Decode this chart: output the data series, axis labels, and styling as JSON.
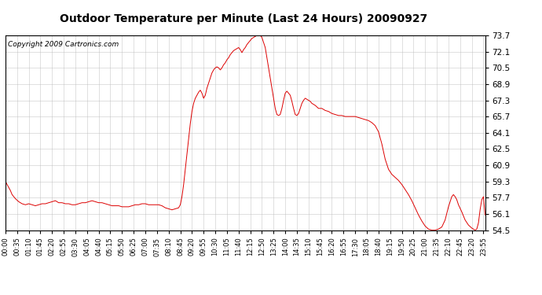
{
  "title": "Outdoor Temperature per Minute (Last 24 Hours) 20090927",
  "copyright": "Copyright 2009 Cartronics.com",
  "y_ticks": [
    54.5,
    56.1,
    57.7,
    59.3,
    60.9,
    62.5,
    64.1,
    65.7,
    67.3,
    68.9,
    70.5,
    72.1,
    73.7
  ],
  "y_min": 54.5,
  "y_max": 73.7,
  "line_color": "#dd0000",
  "bg_color": "#ffffff",
  "grid_color": "#bbbbbb",
  "x_labels": [
    "00:00",
    "00:35",
    "01:10",
    "01:45",
    "02:20",
    "02:55",
    "03:30",
    "04:05",
    "04:40",
    "05:15",
    "05:50",
    "06:25",
    "07:00",
    "07:35",
    "08:10",
    "08:45",
    "09:20",
    "09:55",
    "10:30",
    "11:05",
    "11:40",
    "12:15",
    "12:50",
    "13:25",
    "14:00",
    "14:35",
    "15:10",
    "15:45",
    "16:20",
    "16:55",
    "17:30",
    "18:05",
    "18:40",
    "19:15",
    "19:50",
    "20:25",
    "21:00",
    "21:35",
    "22:10",
    "22:45",
    "23:20",
    "23:55"
  ],
  "curve_data": [
    [
      0,
      59.3
    ],
    [
      5,
      59.0
    ],
    [
      10,
      58.7
    ],
    [
      15,
      58.4
    ],
    [
      20,
      58.0
    ],
    [
      25,
      57.8
    ],
    [
      30,
      57.6
    ],
    [
      40,
      57.3
    ],
    [
      50,
      57.1
    ],
    [
      60,
      57.0
    ],
    [
      70,
      57.1
    ],
    [
      80,
      57.0
    ],
    [
      90,
      56.9
    ],
    [
      100,
      57.0
    ],
    [
      110,
      57.1
    ],
    [
      120,
      57.1
    ],
    [
      130,
      57.2
    ],
    [
      140,
      57.3
    ],
    [
      150,
      57.4
    ],
    [
      160,
      57.2
    ],
    [
      170,
      57.2
    ],
    [
      180,
      57.1
    ],
    [
      190,
      57.1
    ],
    [
      200,
      57.0
    ],
    [
      210,
      57.0
    ],
    [
      220,
      57.1
    ],
    [
      230,
      57.2
    ],
    [
      240,
      57.2
    ],
    [
      250,
      57.3
    ],
    [
      260,
      57.4
    ],
    [
      270,
      57.3
    ],
    [
      280,
      57.2
    ],
    [
      290,
      57.2
    ],
    [
      300,
      57.1
    ],
    [
      310,
      57.0
    ],
    [
      320,
      56.9
    ],
    [
      330,
      56.9
    ],
    [
      340,
      56.9
    ],
    [
      350,
      56.8
    ],
    [
      360,
      56.8
    ],
    [
      370,
      56.8
    ],
    [
      380,
      56.9
    ],
    [
      390,
      57.0
    ],
    [
      400,
      57.0
    ],
    [
      410,
      57.1
    ],
    [
      420,
      57.1
    ],
    [
      430,
      57.0
    ],
    [
      440,
      57.0
    ],
    [
      450,
      57.0
    ],
    [
      460,
      57.0
    ],
    [
      470,
      56.9
    ],
    [
      480,
      56.7
    ],
    [
      490,
      56.6
    ],
    [
      500,
      56.5
    ],
    [
      510,
      56.6
    ],
    [
      520,
      56.7
    ],
    [
      525,
      57.0
    ],
    [
      530,
      57.8
    ],
    [
      535,
      59.0
    ],
    [
      540,
      60.5
    ],
    [
      545,
      62.0
    ],
    [
      550,
      63.5
    ],
    [
      555,
      65.0
    ],
    [
      560,
      66.2
    ],
    [
      565,
      67.0
    ],
    [
      570,
      67.5
    ],
    [
      575,
      67.8
    ],
    [
      580,
      68.1
    ],
    [
      585,
      68.3
    ],
    [
      590,
      68.0
    ],
    [
      595,
      67.5
    ],
    [
      600,
      67.8
    ],
    [
      605,
      68.5
    ],
    [
      610,
      69.0
    ],
    [
      615,
      69.5
    ],
    [
      620,
      70.0
    ],
    [
      625,
      70.3
    ],
    [
      630,
      70.5
    ],
    [
      635,
      70.6
    ],
    [
      640,
      70.5
    ],
    [
      645,
      70.3
    ],
    [
      650,
      70.5
    ],
    [
      655,
      70.8
    ],
    [
      660,
      71.0
    ],
    [
      665,
      71.3
    ],
    [
      670,
      71.5
    ],
    [
      675,
      71.8
    ],
    [
      680,
      72.0
    ],
    [
      685,
      72.2
    ],
    [
      690,
      72.3
    ],
    [
      695,
      72.4
    ],
    [
      700,
      72.5
    ],
    [
      705,
      72.3
    ],
    [
      710,
      72.0
    ],
    [
      715,
      72.3
    ],
    [
      720,
      72.5
    ],
    [
      725,
      72.8
    ],
    [
      730,
      73.0
    ],
    [
      735,
      73.2
    ],
    [
      740,
      73.4
    ],
    [
      745,
      73.5
    ],
    [
      750,
      73.6
    ],
    [
      755,
      73.7
    ],
    [
      760,
      73.75
    ],
    [
      765,
      73.7
    ],
    [
      770,
      73.5
    ],
    [
      775,
      73.0
    ],
    [
      780,
      72.5
    ],
    [
      785,
      71.5
    ],
    [
      790,
      70.5
    ],
    [
      795,
      69.5
    ],
    [
      800,
      68.5
    ],
    [
      805,
      67.5
    ],
    [
      810,
      66.5
    ],
    [
      815,
      65.9
    ],
    [
      820,
      65.8
    ],
    [
      825,
      65.9
    ],
    [
      830,
      66.5
    ],
    [
      835,
      67.3
    ],
    [
      840,
      68.0
    ],
    [
      845,
      68.2
    ],
    [
      850,
      68.0
    ],
    [
      855,
      67.8
    ],
    [
      860,
      67.2
    ],
    [
      865,
      66.5
    ],
    [
      870,
      65.9
    ],
    [
      875,
      65.8
    ],
    [
      880,
      66.0
    ],
    [
      885,
      66.5
    ],
    [
      890,
      67.0
    ],
    [
      895,
      67.3
    ],
    [
      900,
      67.5
    ],
    [
      905,
      67.4
    ],
    [
      910,
      67.3
    ],
    [
      915,
      67.2
    ],
    [
      920,
      67.0
    ],
    [
      930,
      66.8
    ],
    [
      940,
      66.5
    ],
    [
      950,
      66.5
    ],
    [
      960,
      66.3
    ],
    [
      970,
      66.2
    ],
    [
      980,
      66.0
    ],
    [
      990,
      65.9
    ],
    [
      1000,
      65.8
    ],
    [
      1010,
      65.8
    ],
    [
      1020,
      65.7
    ],
    [
      1030,
      65.7
    ],
    [
      1040,
      65.7
    ],
    [
      1050,
      65.7
    ],
    [
      1060,
      65.6
    ],
    [
      1070,
      65.5
    ],
    [
      1080,
      65.4
    ],
    [
      1090,
      65.3
    ],
    [
      1100,
      65.1
    ],
    [
      1110,
      64.8
    ],
    [
      1120,
      64.2
    ],
    [
      1130,
      63.0
    ],
    [
      1140,
      61.5
    ],
    [
      1150,
      60.5
    ],
    [
      1160,
      60.0
    ],
    [
      1170,
      59.7
    ],
    [
      1180,
      59.4
    ],
    [
      1190,
      59.0
    ],
    [
      1200,
      58.5
    ],
    [
      1210,
      58.0
    ],
    [
      1220,
      57.4
    ],
    [
      1230,
      56.7
    ],
    [
      1240,
      56.0
    ],
    [
      1250,
      55.4
    ],
    [
      1260,
      54.9
    ],
    [
      1270,
      54.6
    ],
    [
      1280,
      54.5
    ],
    [
      1290,
      54.5
    ],
    [
      1300,
      54.6
    ],
    [
      1310,
      54.8
    ],
    [
      1320,
      55.5
    ],
    [
      1330,
      56.8
    ],
    [
      1340,
      57.8
    ],
    [
      1345,
      58.0
    ],
    [
      1350,
      57.8
    ],
    [
      1355,
      57.5
    ],
    [
      1360,
      57.0
    ],
    [
      1370,
      56.3
    ],
    [
      1380,
      55.5
    ],
    [
      1390,
      55.0
    ],
    [
      1400,
      54.7
    ],
    [
      1405,
      54.6
    ],
    [
      1410,
      54.5
    ],
    [
      1415,
      54.6
    ],
    [
      1420,
      55.2
    ],
    [
      1425,
      56.5
    ],
    [
      1430,
      57.5
    ],
    [
      1435,
      57.8
    ],
    [
      1440,
      56.0
    ]
  ]
}
